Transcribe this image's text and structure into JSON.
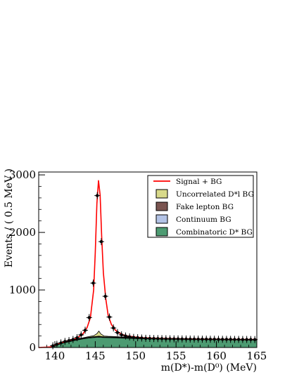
{
  "chart_data": {
    "type": "line",
    "title": "",
    "xlabel": "m(D*)-m(D⁰) (MeV)",
    "ylabel": "Events / ( 0.5 MeV )",
    "xlim": [
      138,
      165
    ],
    "ylim": [
      0,
      3050
    ],
    "x_ticks": [
      140,
      145,
      150,
      155,
      160,
      165
    ],
    "y_ticks": [
      0,
      1000,
      2000,
      3000
    ],
    "grid": false,
    "legend_position": "top-right",
    "legend": [
      {
        "name": "Signal + BG",
        "style": "line",
        "color": "#ff0000"
      },
      {
        "name": "Uncorrelated D*l BG",
        "style": "fill",
        "color": "#d8d98a"
      },
      {
        "name": "Fake lepton BG",
        "style": "fill",
        "color": "#7a5450"
      },
      {
        "name": "Continuum BG",
        "style": "fill",
        "color": "#b3c3e6"
      },
      {
        "name": "Combinatoric D* BG",
        "style": "fill",
        "color": "#4d9b72"
      }
    ],
    "data_points": {
      "x": [
        139.75,
        140.25,
        140.75,
        141.25,
        141.75,
        142.25,
        142.75,
        143.25,
        143.75,
        144.25,
        144.75,
        145.25,
        145.75,
        146.25,
        146.75,
        147.25,
        147.75,
        148.25,
        148.75,
        149.25,
        149.75,
        150.25,
        150.75,
        151.25,
        151.75,
        152.25,
        152.75,
        153.25,
        153.75,
        154.25,
        154.75,
        155.25,
        155.75,
        156.25,
        156.75,
        157.25,
        157.75,
        158.25,
        158.75,
        159.25,
        159.75,
        160.25,
        160.75,
        161.25,
        161.75,
        162.25,
        162.75,
        163.25,
        163.75,
        164.25,
        164.75
      ],
      "y": [
        30,
        55,
        80,
        105,
        120,
        140,
        170,
        220,
        300,
        520,
        1120,
        2640,
        1840,
        890,
        530,
        340,
        260,
        220,
        200,
        185,
        175,
        170,
        165,
        160,
        158,
        156,
        155,
        154,
        152,
        151,
        150,
        150,
        149,
        148,
        147,
        147,
        146,
        145,
        145,
        144,
        144,
        143,
        143,
        142,
        142,
        141,
        141,
        140,
        140,
        139,
        138
      ]
    },
    "series": [
      {
        "name": "Signal + BG",
        "x": [
          138,
          139.5,
          140.5,
          141.5,
          142.5,
          143,
          143.5,
          144,
          144.4,
          144.8,
          145.0,
          145.2,
          145.4,
          145.6,
          145.8,
          146.0,
          146.3,
          146.6,
          147,
          147.5,
          148,
          148.5,
          149,
          150,
          151,
          152,
          154,
          156,
          158,
          160,
          162,
          164,
          165
        ],
        "y": [
          0,
          10,
          70,
          110,
          150,
          190,
          240,
          350,
          520,
          1000,
          1650,
          2500,
          2900,
          2650,
          1900,
          1300,
          850,
          560,
          400,
          300,
          250,
          220,
          200,
          180,
          168,
          162,
          155,
          150,
          147,
          144,
          142,
          140,
          139
        ]
      },
      {
        "name": "Uncorrelated D*l BG",
        "x": [
          138,
          139.5,
          140.5,
          141.5,
          142.5,
          143.5,
          144.2,
          144.8,
          145.2,
          145.45,
          145.7,
          146.1,
          146.6,
          147.5,
          148.5,
          150,
          152,
          155,
          158,
          161,
          165
        ],
        "y": [
          0,
          10,
          70,
          105,
          140,
          170,
          190,
          205,
          240,
          285,
          235,
          200,
          195,
          190,
          180,
          170,
          160,
          150,
          145,
          140,
          135
        ]
      },
      {
        "name": "Fake lepton BG",
        "x": [
          138,
          139.5,
          140.5,
          141.5,
          142.5,
          143.5,
          144.2,
          144.8,
          145.2,
          145.45,
          145.7,
          146.1,
          146.6,
          147.5,
          148.5,
          150,
          152,
          155,
          158,
          161,
          165
        ],
        "y": [
          0,
          10,
          66,
          100,
          134,
          162,
          178,
          188,
          194,
          198,
          192,
          186,
          184,
          180,
          172,
          164,
          156,
          148,
          143,
          138,
          133
        ]
      },
      {
        "name": "Continuum BG",
        "x": [
          138,
          139.5,
          140.5,
          141.5,
          142.5,
          143.5,
          144.2,
          144.8,
          145.2,
          145.45,
          145.7,
          146.1,
          146.6,
          147.5,
          148.5,
          150,
          152,
          155,
          158,
          161,
          165
        ],
        "y": [
          0,
          10,
          63,
          96,
          130,
          158,
          172,
          180,
          185,
          188,
          184,
          180,
          178,
          175,
          168,
          160,
          153,
          146,
          141,
          136,
          131
        ]
      },
      {
        "name": "Combinatoric D* BG",
        "x": [
          138,
          139.5,
          140.5,
          141.5,
          142.5,
          143.5,
          144.2,
          144.8,
          145.2,
          145.45,
          145.7,
          146.1,
          146.6,
          147.5,
          148.5,
          150,
          152,
          155,
          158,
          161,
          165
        ],
        "y": [
          0,
          8,
          60,
          92,
          125,
          150,
          165,
          172,
          176,
          178,
          176,
          173,
          171,
          168,
          162,
          156,
          150,
          144,
          139,
          134,
          129
        ]
      }
    ]
  }
}
